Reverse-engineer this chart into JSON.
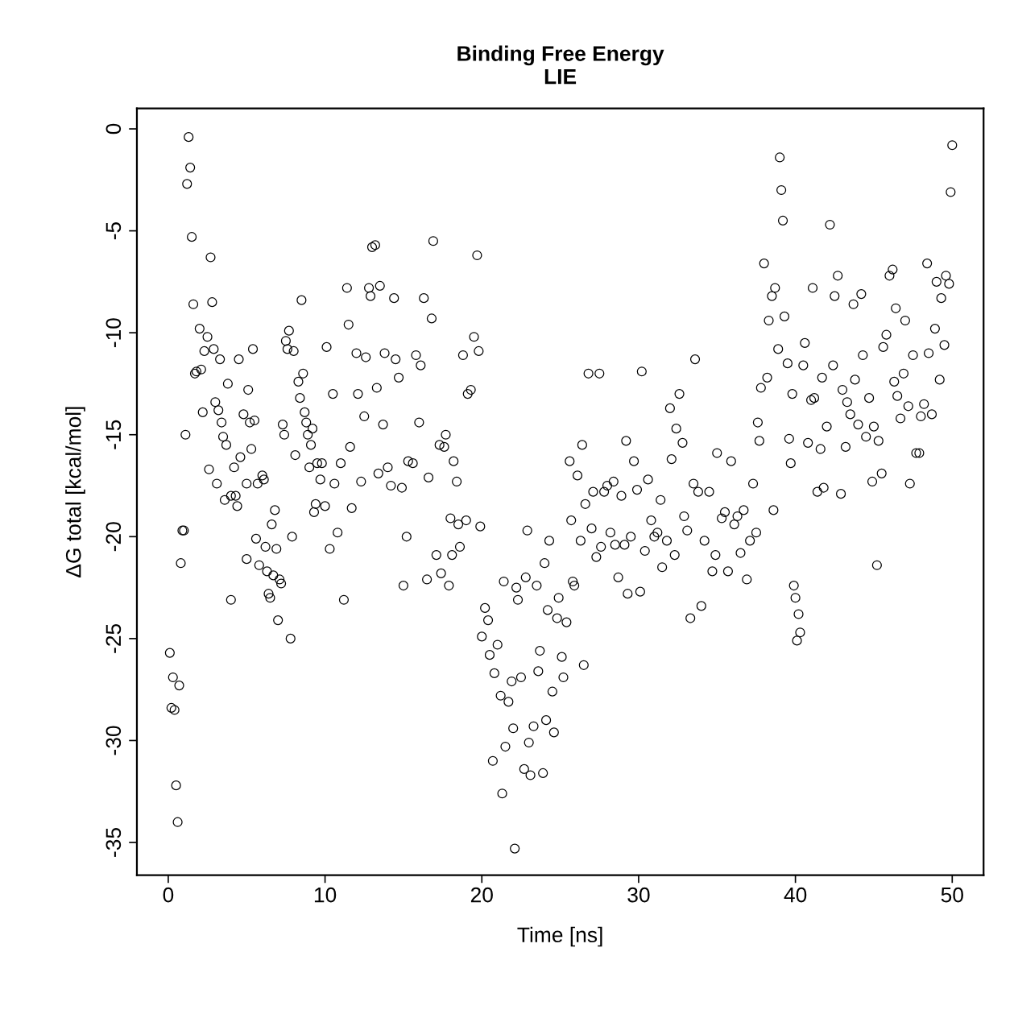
{
  "chart_data": {
    "type": "scatter",
    "title": "Binding Free Energy\nLIE",
    "xlabel": "Time [ns]",
    "ylabel": "ΔG total [kcal/mol]",
    "xlim": [
      -2,
      52
    ],
    "ylim": [
      -36.6,
      1.0
    ],
    "xticks": [
      0,
      10,
      20,
      30,
      40,
      50
    ],
    "yticks": [
      0,
      -5,
      -10,
      -15,
      -20,
      -25,
      -30,
      -35
    ],
    "grid": false,
    "marker": "circle",
    "series": [
      {
        "color": "#000000",
        "x": [
          0.1,
          0.2,
          0.3,
          0.4,
          0.5,
          0.6,
          0.7,
          0.8,
          0.9,
          1.0,
          1.1,
          1.2,
          1.3,
          1.4,
          1.5,
          1.6,
          1.7,
          1.8,
          2.0,
          2.1,
          2.2,
          2.3,
          2.5,
          2.6,
          2.7,
          2.8,
          2.9,
          3.0,
          3.1,
          3.2,
          3.3,
          3.4,
          3.5,
          3.6,
          3.7,
          3.8,
          4.0,
          4.0,
          4.2,
          4.3,
          4.4,
          4.5,
          4.6,
          4.8,
          5.0,
          5.0,
          5.1,
          5.2,
          5.3,
          5.4,
          5.5,
          5.6,
          5.7,
          5.8,
          6.0,
          6.1,
          6.2,
          6.3,
          6.4,
          6.5,
          6.6,
          6.7,
          6.8,
          6.9,
          7.0,
          7.1,
          7.2,
          7.3,
          7.4,
          7.5,
          7.6,
          7.7,
          7.8,
          7.9,
          8.0,
          8.1,
          8.3,
          8.4,
          8.5,
          8.6,
          8.7,
          8.8,
          8.9,
          9.0,
          9.1,
          9.2,
          9.3,
          9.4,
          9.5,
          9.7,
          9.8,
          10.0,
          10.1,
          10.3,
          10.5,
          10.6,
          10.8,
          11.0,
          11.2,
          11.4,
          11.5,
          11.6,
          11.7,
          12.0,
          12.1,
          12.3,
          12.5,
          12.6,
          12.8,
          12.9,
          13.0,
          13.2,
          13.3,
          13.4,
          13.5,
          13.7,
          13.8,
          14.0,
          14.2,
          14.4,
          14.5,
          14.7,
          14.9,
          15.0,
          15.2,
          15.3,
          15.6,
          15.8,
          16.0,
          16.1,
          16.3,
          16.5,
          16.6,
          16.8,
          16.9,
          17.1,
          17.3,
          17.4,
          17.6,
          17.7,
          17.9,
          18.0,
          18.1,
          18.2,
          18.4,
          18.5,
          18.6,
          18.8,
          19.0,
          19.1,
          19.3,
          19.5,
          19.7,
          19.8,
          19.9,
          20.0,
          20.2,
          20.4,
          20.5,
          20.7,
          20.8,
          21.0,
          21.2,
          21.3,
          21.4,
          21.5,
          21.7,
          21.9,
          22.0,
          22.1,
          22.2,
          22.3,
          22.5,
          22.7,
          22.8,
          22.9,
          23.0,
          23.1,
          23.3,
          23.5,
          23.6,
          23.7,
          23.9,
          24.0,
          24.1,
          24.2,
          24.3,
          24.5,
          24.6,
          24.8,
          24.9,
          25.1,
          25.2,
          25.4,
          25.6,
          25.7,
          25.8,
          25.9,
          26.1,
          26.3,
          26.4,
          26.5,
          26.6,
          26.8,
          27.0,
          27.1,
          27.3,
          27.5,
          27.6,
          27.8,
          28.0,
          28.2,
          28.4,
          28.5,
          28.7,
          28.9,
          29.1,
          29.2,
          29.3,
          29.5,
          29.7,
          29.9,
          30.1,
          30.2,
          30.4,
          30.6,
          30.8,
          31.0,
          31.2,
          31.4,
          31.5,
          31.8,
          32.0,
          32.1,
          32.3,
          32.4,
          32.6,
          32.8,
          32.9,
          33.1,
          33.3,
          33.5,
          33.6,
          33.8,
          34.0,
          34.2,
          34.5,
          34.7,
          34.9,
          35.0,
          35.3,
          35.5,
          35.7,
          35.9,
          36.1,
          36.3,
          36.5,
          36.7,
          36.9,
          37.1,
          37.3,
          37.5,
          37.6,
          37.7,
          37.8,
          38.0,
          38.2,
          38.3,
          38.5,
          38.6,
          38.7,
          38.9,
          39.0,
          39.1,
          39.2,
          39.3,
          39.5,
          39.6,
          39.7,
          39.8,
          39.9,
          40.0,
          40.1,
          40.2,
          40.3,
          40.5,
          40.6,
          40.8,
          41.0,
          41.1,
          41.2,
          41.4,
          41.6,
          41.7,
          41.8,
          42.0,
          42.2,
          42.4,
          42.5,
          42.7,
          42.9,
          43.0,
          43.2,
          43.3,
          43.5,
          43.7,
          43.8,
          44.0,
          44.2,
          44.3,
          44.5,
          44.7,
          44.9,
          45.0,
          45.2,
          45.3,
          45.5,
          45.6,
          45.8,
          46.0,
          46.2,
          46.3,
          46.4,
          46.5,
          46.7,
          46.9,
          47.0,
          47.2,
          47.3,
          47.5,
          47.7,
          47.9,
          48.0,
          48.2,
          48.4,
          48.5,
          48.7,
          48.9,
          49.0,
          49.2,
          49.3,
          49.5,
          49.6,
          49.8,
          49.9,
          50.0
        ],
        "values": [
          -25.7,
          -28.4,
          -26.9,
          -28.5,
          -32.2,
          -34.0,
          -27.3,
          -21.3,
          -19.7,
          -19.7,
          -15.0,
          -2.7,
          -0.4,
          -1.9,
          -5.3,
          -8.6,
          -12.0,
          -11.9,
          -9.8,
          -11.8,
          -13.9,
          -10.9,
          -10.2,
          -16.7,
          -6.3,
          -8.5,
          -10.8,
          -13.4,
          -17.4,
          -13.8,
          -11.3,
          -14.4,
          -15.1,
          -18.2,
          -15.5,
          -12.5,
          -18.0,
          -23.1,
          -16.6,
          -18.0,
          -18.5,
          -11.3,
          -16.1,
          -14.0,
          -17.4,
          -21.1,
          -12.8,
          -14.4,
          -15.7,
          -10.8,
          -14.3,
          -20.1,
          -17.4,
          -21.4,
          -17.0,
          -17.2,
          -20.5,
          -21.7,
          -22.8,
          -23.0,
          -19.4,
          -21.9,
          -18.7,
          -20.6,
          -24.1,
          -22.1,
          -22.3,
          -14.5,
          -15.0,
          -10.4,
          -10.8,
          -9.9,
          -25.0,
          -20.0,
          -10.9,
          -16.0,
          -12.4,
          -13.2,
          -8.4,
          -12.0,
          -13.9,
          -14.4,
          -15.0,
          -16.6,
          -15.5,
          -14.7,
          -18.8,
          -18.4,
          -16.4,
          -17.2,
          -16.4,
          -18.5,
          -10.7,
          -20.6,
          -13.0,
          -17.4,
          -19.8,
          -16.4,
          -23.1,
          -7.8,
          -9.6,
          -15.6,
          -18.6,
          -11.0,
          -13.0,
          -17.3,
          -14.1,
          -11.2,
          -7.8,
          -8.2,
          -5.8,
          -5.7,
          -12.7,
          -16.9,
          -7.7,
          -14.5,
          -11.0,
          -16.6,
          -17.5,
          -8.3,
          -11.3,
          -12.2,
          -17.6,
          -22.4,
          -20.0,
          -16.3,
          -16.4,
          -11.1,
          -14.4,
          -11.6,
          -8.3,
          -22.1,
          -17.1,
          -9.3,
          -5.5,
          -20.9,
          -15.5,
          -21.8,
          -15.6,
          -15.0,
          -22.4,
          -19.1,
          -20.9,
          -16.3,
          -17.3,
          -19.4,
          -20.5,
          -11.1,
          -19.2,
          -13.0,
          -12.8,
          -10.2,
          -6.2,
          -10.9,
          -19.5,
          -24.9,
          -23.5,
          -24.1,
          -25.8,
          -31.0,
          -26.7,
          -25.3,
          -27.8,
          -32.6,
          -22.2,
          -30.3,
          -28.1,
          -27.1,
          -29.4,
          -35.3,
          -22.5,
          -23.1,
          -26.9,
          -31.4,
          -22.0,
          -19.7,
          -30.1,
          -31.7,
          -29.3,
          -22.4,
          -26.6,
          -25.6,
          -31.6,
          -21.3,
          -29.0,
          -23.6,
          -20.2,
          -27.6,
          -29.6,
          -24.0,
          -23.0,
          -25.9,
          -26.9,
          -24.2,
          -16.3,
          -19.2,
          -22.2,
          -22.4,
          -17.0,
          -20.2,
          -15.5,
          -26.3,
          -18.4,
          -12.0,
          -19.6,
          -17.8,
          -21.0,
          -12.0,
          -20.5,
          -17.8,
          -17.5,
          -19.8,
          -17.3,
          -20.4,
          -22.0,
          -18.0,
          -20.4,
          -15.3,
          -22.8,
          -20.0,
          -16.3,
          -17.7,
          -22.7,
          -11.9,
          -20.7,
          -17.2,
          -19.2,
          -20.0,
          -19.8,
          -18.2,
          -21.5,
          -20.2,
          -13.7,
          -16.2,
          -20.9,
          -14.7,
          -13.0,
          -15.4,
          -19.0,
          -19.7,
          -24.0,
          -17.4,
          -11.3,
          -17.8,
          -23.4,
          -20.2,
          -17.8,
          -21.7,
          -20.9,
          -15.9,
          -19.1,
          -18.8,
          -21.7,
          -16.3,
          -19.4,
          -19.0,
          -20.8,
          -18.7,
          -22.1,
          -20.2,
          -17.4,
          -19.8,
          -14.4,
          -15.3,
          -12.7,
          -6.6,
          -12.2,
          -9.4,
          -8.2,
          -18.7,
          -7.8,
          -10.8,
          -1.4,
          -3.0,
          -4.5,
          -9.2,
          -11.5,
          -15.2,
          -16.4,
          -13.0,
          -22.4,
          -23.0,
          -25.1,
          -23.8,
          -24.7,
          -11.6,
          -10.5,
          -15.4,
          -13.3,
          -7.8,
          -13.2,
          -17.8,
          -15.7,
          -12.2,
          -17.6,
          -14.6,
          -4.7,
          -11.6,
          -8.2,
          -7.2,
          -17.9,
          -12.8,
          -15.6,
          -13.4,
          -14.0,
          -8.6,
          -12.3,
          -14.5,
          -8.1,
          -11.1,
          -15.1,
          -13.2,
          -17.3,
          -14.6,
          -21.4,
          -15.3,
          -16.9,
          -10.7,
          -10.1,
          -7.2,
          -6.9,
          -12.4,
          -8.8,
          -13.1,
          -14.2,
          -12.0,
          -9.4,
          -13.6,
          -17.4,
          -11.1,
          -15.9,
          -15.9,
          -14.1,
          -13.5,
          -6.6,
          -11.0,
          -14.0,
          -9.8,
          -7.5,
          -12.3,
          -8.3,
          -10.6,
          -7.2,
          -7.6,
          -3.1,
          -0.8
        ]
      }
    ]
  }
}
